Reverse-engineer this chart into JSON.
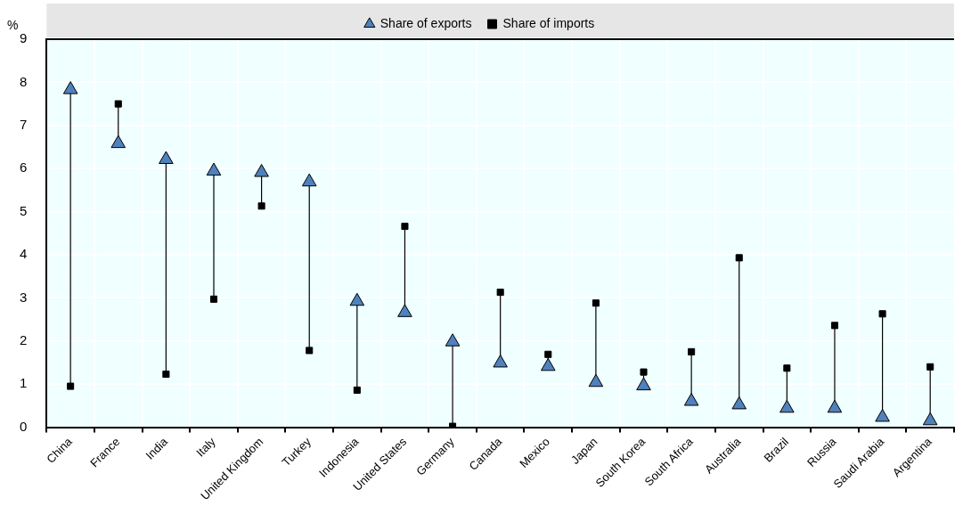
{
  "chart_data": {
    "type": "scatter",
    "ylabel": "%",
    "categories": [
      "China",
      "France",
      "India",
      "Italy",
      "United Kingdom",
      "Turkey",
      "Indonesia",
      "United States",
      "Germany",
      "Canada",
      "Mexico",
      "Japan",
      "South Korea",
      "South Africa",
      "Australia",
      "Brazil",
      "Russia",
      "Saudi Arabia",
      "Argentina"
    ],
    "series": [
      {
        "name": "Share of exports",
        "color": "#4f81bd",
        "marker": "triangle",
        "values": [
          7.83,
          6.58,
          6.21,
          5.94,
          5.91,
          5.69,
          2.92,
          2.66,
          1.98,
          1.49,
          1.41,
          1.04,
          0.96,
          0.6,
          0.52,
          0.44,
          0.44,
          0.23,
          0.15
        ]
      },
      {
        "name": "Share of imports",
        "color": "#000000",
        "marker": "square",
        "values": [
          0.95,
          7.5,
          1.23,
          2.97,
          5.13,
          1.78,
          0.86,
          4.66,
          0.02,
          3.13,
          1.69,
          2.88,
          1.28,
          1.75,
          3.93,
          1.37,
          2.36,
          2.63,
          1.4
        ]
      }
    ],
    "ylim": [
      0,
      9
    ],
    "yticks": [
      0,
      1,
      2,
      3,
      4,
      5,
      6,
      7,
      8,
      9
    ],
    "grid": true,
    "legend": "top"
  }
}
